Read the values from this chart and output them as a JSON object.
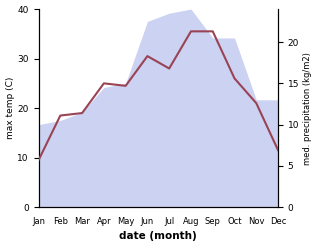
{
  "months": [
    "Jan",
    "Feb",
    "Mar",
    "Apr",
    "May",
    "Jun",
    "Jul",
    "Aug",
    "Sep",
    "Oct",
    "Nov",
    "Dec"
  ],
  "max_temp": [
    9.5,
    18.5,
    19.0,
    25.0,
    24.5,
    30.5,
    28.0,
    35.5,
    35.5,
    26.0,
    21.0,
    11.5
  ],
  "precipitation": [
    10.0,
    10.5,
    11.5,
    14.5,
    15.0,
    22.5,
    23.5,
    24.0,
    20.5,
    20.5,
    13.0,
    13.0
  ],
  "temp_color": "#994455",
  "precip_color": "#aab4e8",
  "precip_fill_alpha": 0.6,
  "temp_ylim": [
    0,
    40
  ],
  "precip_ylim": [
    0,
    24
  ],
  "precip_yticks": [
    0,
    5,
    10,
    15,
    20
  ],
  "temp_yticks": [
    0,
    10,
    20,
    30,
    40
  ],
  "xlabel": "date (month)",
  "ylabel_left": "max temp (C)",
  "ylabel_right": "med. precipitation (kg/m2)",
  "background_color": "#ffffff"
}
